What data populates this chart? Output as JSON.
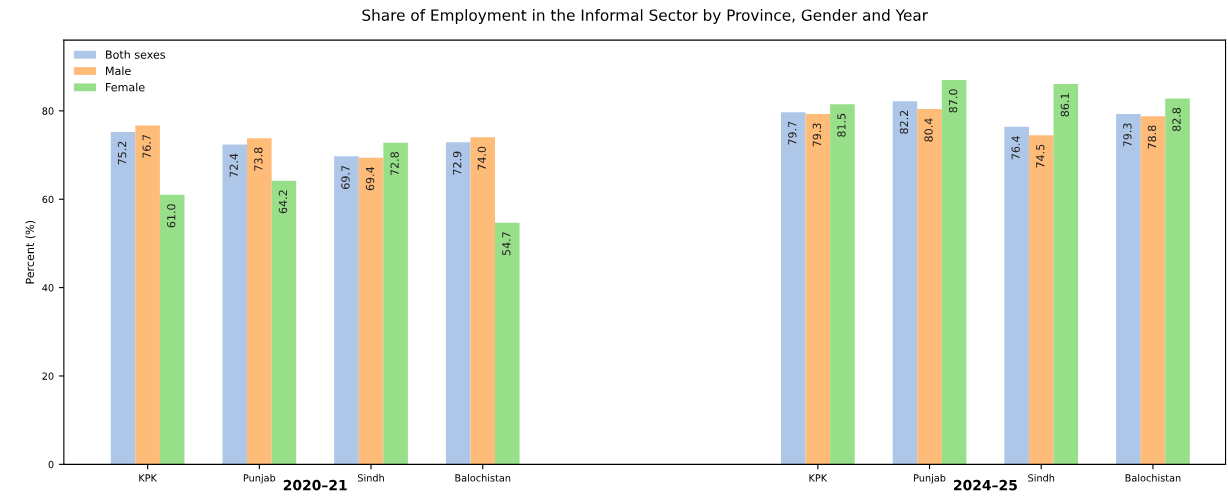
{
  "chart_data": {
    "type": "bar",
    "title": "Share of Employment in the Informal Sector by Province, Gender and Year",
    "ylabel": "Percent (%)",
    "categories": [
      "KPK",
      "Punjab",
      "Sindh",
      "Balochistan",
      null,
      null,
      "KPK",
      "Punjab",
      "Sindh",
      "Balochistan"
    ],
    "series": [
      {
        "name": "Both sexes",
        "color": "#aec7e8",
        "values": [
          75.2,
          72.4,
          69.7,
          72.9,
          null,
          null,
          79.7,
          82.2,
          76.4,
          79.3
        ],
        "value_labels": [
          "75.2",
          "72.4",
          "69.7",
          "72.9",
          null,
          null,
          "79.7",
          "82.2",
          "76.4",
          "79.3"
        ]
      },
      {
        "name": "Male",
        "color": "#ffbb78",
        "values": [
          76.7,
          73.8,
          69.4,
          74.0,
          null,
          null,
          79.3,
          80.4,
          74.5,
          78.8
        ],
        "value_labels": [
          "76.7",
          "73.8",
          "69.4",
          "74.0",
          null,
          null,
          "79.3",
          "80.4",
          "74.5",
          "78.8"
        ]
      },
      {
        "name": "Female",
        "color": "#98df8a",
        "values": [
          61.0,
          64.2,
          72.8,
          54.7,
          null,
          null,
          81.5,
          87.0,
          86.1,
          82.8
        ],
        "value_labels": [
          "61.0",
          "64.2",
          "72.8",
          "54.7",
          null,
          null,
          "81.5",
          "87.0",
          "86.1",
          "82.8"
        ]
      }
    ],
    "annotations": [
      "2020–21",
      "2024–25"
    ],
    "ylim": [
      0,
      96
    ],
    "yticks": [
      0,
      20,
      40,
      60,
      80
    ],
    "grid": false,
    "legend": "top left"
  }
}
